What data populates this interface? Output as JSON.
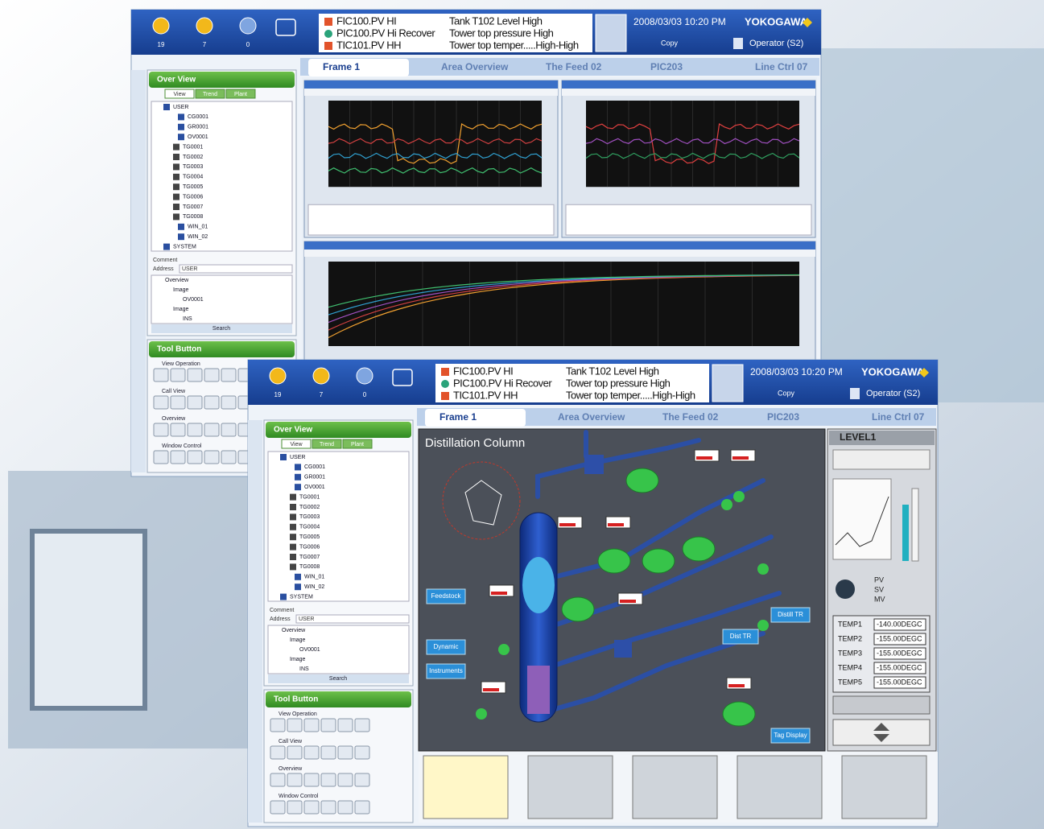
{
  "header": {
    "alarm_counts": [
      19,
      7,
      0
    ],
    "alarms": [
      {
        "tag": "FIC100.PV HI",
        "message": "Tank T102 Level High",
        "color": "#e2532b"
      },
      {
        "tag": "PIC100.PV Hi Recover",
        "message": "Tower top pressure High",
        "color": "#2aa37a"
      },
      {
        "tag": "TIC101.PV HH",
        "message": "Tower top temper.....High-High",
        "color": "#e2532b"
      }
    ],
    "datetime": "2008/03/03 10:20 PM",
    "brand": "YOKOGAWA",
    "copy": "Copy",
    "operator": "Operator (S2)"
  },
  "tabs": [
    "Frame 1",
    "Area Overview",
    "The Feed 02",
    "PIC203",
    "Line Ctrl 07"
  ],
  "navigator": {
    "title": "Over View",
    "subtabs": [
      "View",
      "Trend",
      "Plant"
    ],
    "tree": [
      "USER",
      "CG0001",
      "GR0001",
      "OV0001",
      "TG0001",
      "TG0002",
      "TG0003",
      "TG0004",
      "TG0005",
      "TG0006",
      "TG0007",
      "TG0008",
      "WIN_01",
      "WIN_02",
      "SYSTEM"
    ],
    "comment_label": "Comment",
    "address_label": "Address",
    "address": "USER",
    "lower_tree": [
      "Overview",
      "Image",
      "OV0001",
      "Image",
      "INS"
    ],
    "search": "Search"
  },
  "tool_button": {
    "title": "Tool Button",
    "groups": [
      "View Operation",
      "Call View",
      "Overview",
      "Window Control"
    ]
  },
  "graphic": {
    "title": "Distillation Column",
    "buttons": [
      "Feedstock",
      "Dynamic",
      "Instruments",
      "Distill TR",
      "Dist TR",
      "Tag Display"
    ]
  },
  "faceplate": {
    "title": "LEVEL1",
    "modes": [
      "PV",
      "SV",
      "MV"
    ],
    "temps": [
      {
        "name": "TEMP1",
        "value": "-140.00DEGC"
      },
      {
        "name": "TEMP2",
        "value": "-155.00DEGC"
      },
      {
        "name": "TEMP3",
        "value": "-155.00DEGC"
      },
      {
        "name": "TEMP4",
        "value": "-155.00DEGC"
      },
      {
        "name": "TEMP5",
        "value": "-155.00DEGC"
      }
    ]
  }
}
